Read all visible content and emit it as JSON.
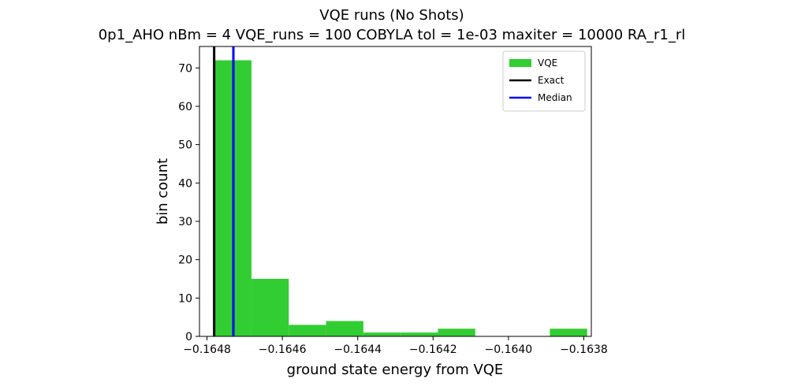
{
  "chart_data": {
    "type": "bar",
    "title": "VQE runs (No Shots)",
    "subtitle": "0p1_AHO    nBm = 4    VQE_runs = 100    COBYLA    tol = 1e-03    maxiter = 10000    RA_r1_rl",
    "xlabel": "ground state energy from VQE",
    "ylabel": "bin count",
    "xlim": [
      -0.16482,
      -0.16378
    ],
    "ylim": [
      0,
      75.6
    ],
    "x_ticks": [
      {
        "value": -0.1648,
        "label": "−0.1648"
      },
      {
        "value": -0.1646,
        "label": "−0.1646"
      },
      {
        "value": -0.1644,
        "label": "−0.1644"
      },
      {
        "value": -0.1642,
        "label": "−0.1642"
      },
      {
        "value": -0.164,
        "label": "−0.1640"
      },
      {
        "value": -0.1638,
        "label": "−0.1638"
      }
    ],
    "y_ticks": [
      {
        "value": 0,
        "label": "0"
      },
      {
        "value": 10,
        "label": "10"
      },
      {
        "value": 20,
        "label": "20"
      },
      {
        "value": 30,
        "label": "30"
      },
      {
        "value": 40,
        "label": "40"
      },
      {
        "value": 50,
        "label": "50"
      },
      {
        "value": 60,
        "label": "60"
      },
      {
        "value": 70,
        "label": "70"
      }
    ],
    "histogram": {
      "name": "VQE",
      "color": "#32cd32",
      "bin_edges": [
        -0.164781,
        -0.164682,
        -0.164583,
        -0.164484,
        -0.164385,
        -0.164286,
        -0.164187,
        -0.164088,
        -0.163989,
        -0.16389,
        -0.163791
      ],
      "counts": [
        72,
        15,
        3,
        4,
        1,
        1,
        2,
        0,
        0,
        2
      ]
    },
    "vlines": [
      {
        "name": "Exact",
        "value": -0.164781,
        "color": "#000000"
      },
      {
        "name": "Median",
        "value": -0.16473,
        "color": "#0000ff"
      }
    ],
    "legend": {
      "position": "top-right",
      "entries": [
        {
          "label": "VQE",
          "kind": "patch",
          "color": "#32cd32"
        },
        {
          "label": "Exact",
          "kind": "line",
          "color": "#000000"
        },
        {
          "label": "Median",
          "kind": "line",
          "color": "#0000ff"
        }
      ]
    },
    "grid": false
  }
}
